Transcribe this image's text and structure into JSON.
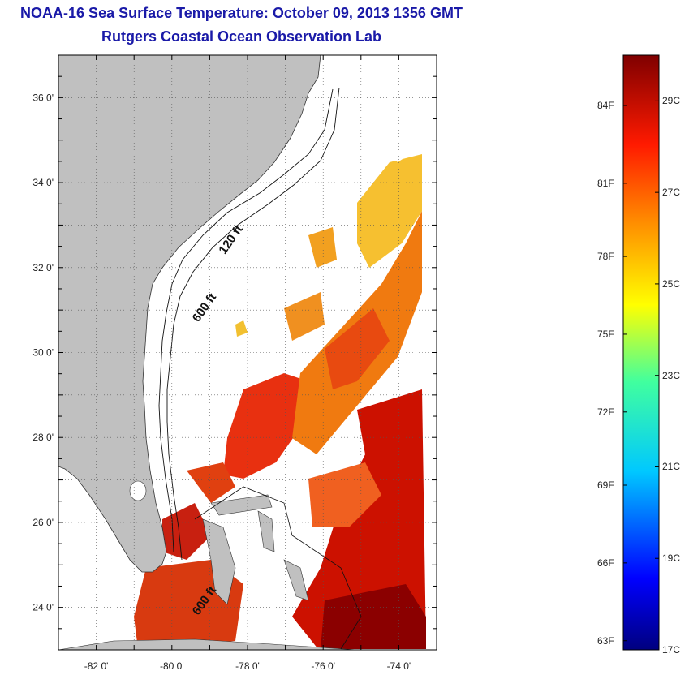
{
  "title": {
    "line1": "NOAA-16 Sea Surface Temperature:  October 09, 2013 1356 GMT",
    "line2": "Rutgers Coastal Ocean Observation Lab"
  },
  "map": {
    "lon_range": [
      -83,
      -73
    ],
    "lat_range": [
      23,
      37
    ],
    "lat_ticks": [
      {
        "value": 24,
        "label": "24 0'"
      },
      {
        "value": 26,
        "label": "26 0'"
      },
      {
        "value": 28,
        "label": "28 0'"
      },
      {
        "value": 30,
        "label": "30 0'"
      },
      {
        "value": 32,
        "label": "32 0'"
      },
      {
        "value": 34,
        "label": "34 0'"
      },
      {
        "value": 36,
        "label": "36 0'"
      }
    ],
    "lon_ticks": [
      {
        "value": -82,
        "label": "-82 0'"
      },
      {
        "value": -80,
        "label": "-80 0'"
      },
      {
        "value": -78,
        "label": "-78 0'"
      },
      {
        "value": -76,
        "label": "-76 0'"
      },
      {
        "value": -74,
        "label": "-74 0'"
      }
    ],
    "contour_labels": [
      {
        "text": "120 ft",
        "lon": -78.6,
        "lat": 32.3
      },
      {
        "text": "600 ft",
        "lon": -79.3,
        "lat": 30.7
      },
      {
        "text": "600 ft",
        "lon": -79.3,
        "lat": 23.8
      }
    ],
    "land_color": "#c0c0c0"
  },
  "colorbar": {
    "range_c": [
      17,
      30
    ],
    "f_labels": [
      {
        "value_c": 17.2,
        "label": "63F"
      },
      {
        "value_c": 18.9,
        "label": "66F"
      },
      {
        "value_c": 20.6,
        "label": "69F"
      },
      {
        "value_c": 22.2,
        "label": "72F"
      },
      {
        "value_c": 23.9,
        "label": "75F"
      },
      {
        "value_c": 25.6,
        "label": "78F"
      },
      {
        "value_c": 27.2,
        "label": "81F"
      },
      {
        "value_c": 28.9,
        "label": "84F"
      }
    ],
    "c_labels": [
      {
        "value_c": 17,
        "label": "17C"
      },
      {
        "value_c": 19,
        "label": "19C"
      },
      {
        "value_c": 21,
        "label": "21C"
      },
      {
        "value_c": 23,
        "label": "23C"
      },
      {
        "value_c": 25,
        "label": "25C"
      },
      {
        "value_c": 27,
        "label": "27C"
      },
      {
        "value_c": 29,
        "label": "29C"
      }
    ]
  }
}
